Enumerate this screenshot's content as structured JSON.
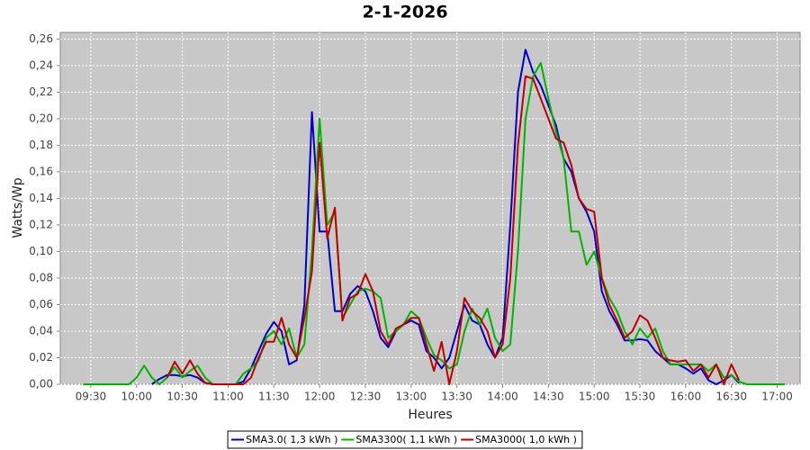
{
  "chart_data": {
    "type": "line",
    "title": "2-1-2026",
    "x_label": "Heures",
    "y_label": "Watts/Wp",
    "x": [
      "09:25",
      "09:30",
      "09:35",
      "09:40",
      "09:45",
      "09:50",
      "09:55",
      "10:00",
      "10:05",
      "10:10",
      "10:15",
      "10:20",
      "10:25",
      "10:30",
      "10:35",
      "10:40",
      "10:45",
      "10:50",
      "10:55",
      "11:00",
      "11:05",
      "11:10",
      "11:15",
      "11:20",
      "11:25",
      "11:30",
      "11:35",
      "11:40",
      "11:45",
      "11:50",
      "11:55",
      "12:00",
      "12:05",
      "12:10",
      "12:15",
      "12:20",
      "12:25",
      "12:30",
      "12:35",
      "12:40",
      "12:45",
      "12:50",
      "12:55",
      "13:00",
      "13:05",
      "13:10",
      "13:15",
      "13:20",
      "13:25",
      "13:30",
      "13:35",
      "13:40",
      "13:45",
      "13:50",
      "13:55",
      "14:00",
      "14:05",
      "14:10",
      "14:15",
      "14:20",
      "14:25",
      "14:30",
      "14:35",
      "14:40",
      "14:45",
      "14:50",
      "14:55",
      "15:00",
      "15:05",
      "15:10",
      "15:15",
      "15:20",
      "15:25",
      "15:30",
      "15:35",
      "15:40",
      "15:45",
      "15:50",
      "15:55",
      "16:00",
      "16:05",
      "16:10",
      "16:15",
      "16:20",
      "16:25",
      "16:30",
      "16:35",
      "16:40",
      "16:45",
      "16:50",
      "16:55",
      "17:00",
      "17:05"
    ],
    "series": [
      {
        "name": "SMA3.0( 1,3 kWh )",
        "color": "#0000c8",
        "values": [
          null,
          null,
          null,
          null,
          null,
          null,
          null,
          null,
          null,
          0,
          0.004,
          0.007,
          0.007,
          0.006,
          0.007,
          0.005,
          0.001,
          0,
          0,
          0,
          0,
          0.002,
          0.012,
          0.025,
          0.038,
          0.047,
          0.04,
          0.015,
          0.018,
          0.06,
          0.205,
          0.115,
          0.115,
          0.055,
          0.055,
          0.068,
          0.074,
          0.07,
          0.055,
          0.035,
          0.028,
          0.04,
          0.045,
          0.048,
          0.045,
          0.025,
          0.02,
          0.012,
          0.02,
          0.04,
          0.06,
          0.048,
          0.045,
          0.03,
          0.02,
          0.035,
          0.12,
          0.22,
          0.252,
          0.235,
          0.225,
          0.21,
          0.195,
          0.17,
          0.16,
          0.14,
          0.13,
          0.115,
          0.07,
          0.055,
          0.045,
          0.033,
          0.033,
          0.034,
          0.033,
          0.025,
          0.02,
          0.015,
          0.015,
          0.012,
          0.008,
          0.012,
          0.003,
          0,
          0.003,
          0.007,
          0.001,
          null,
          null,
          null,
          null,
          null,
          null
        ]
      },
      {
        "name": "SMA3300( 1,1 kWh )",
        "color": "#00b400",
        "values": [
          0,
          0,
          0,
          0,
          0,
          0,
          0,
          0.005,
          0.014,
          0.005,
          0,
          0.005,
          0.013,
          0.005,
          0.01,
          0.014,
          0.005,
          0,
          0,
          0,
          0,
          0.008,
          0.012,
          0.018,
          0.035,
          0.04,
          0.03,
          0.042,
          0.02,
          0.03,
          0.1,
          0.2,
          0.12,
          0.13,
          0.05,
          0.06,
          0.07,
          0.072,
          0.07,
          0.065,
          0.035,
          0.04,
          0.045,
          0.055,
          0.05,
          0.035,
          0.022,
          0.018,
          0.012,
          0.015,
          0.04,
          0.057,
          0.045,
          0.057,
          0.035,
          0.025,
          0.03,
          0.1,
          0.2,
          0.232,
          0.242,
          0.215,
          0.19,
          0.17,
          0.115,
          0.115,
          0.09,
          0.1,
          0.08,
          0.065,
          0.055,
          0.04,
          0.03,
          0.042,
          0.035,
          0.042,
          0.025,
          0.015,
          0.015,
          0.015,
          0.015,
          0.015,
          0.01,
          0.015,
          0.005,
          0.007,
          0.002,
          0,
          0,
          0,
          0,
          0,
          0
        ]
      },
      {
        "name": "SMA3000( 1,0 kWh )",
        "color": "#c00000",
        "values": [
          null,
          null,
          null,
          null,
          null,
          null,
          null,
          null,
          null,
          null,
          null,
          0.005,
          0.017,
          0.008,
          0.018,
          0.008,
          0.001,
          0,
          0,
          0,
          0,
          0,
          0.005,
          0.02,
          0.032,
          0.032,
          0.05,
          0.03,
          0.02,
          0.05,
          0.085,
          0.182,
          0.11,
          0.133,
          0.048,
          0.065,
          0.068,
          0.083,
          0.07,
          0.04,
          0.03,
          0.042,
          0.045,
          0.05,
          0.05,
          0.03,
          0.01,
          0.032,
          0,
          0.025,
          0.065,
          0.055,
          0.05,
          0.04,
          0.02,
          0.03,
          0.08,
          0.18,
          0.232,
          0.23,
          0.215,
          0.2,
          0.185,
          0.182,
          0.165,
          0.14,
          0.132,
          0.13,
          0.08,
          0.06,
          0.048,
          0.035,
          0.04,
          0.052,
          0.048,
          0.035,
          0.02,
          0.018,
          0.017,
          0.018,
          0.01,
          0.015,
          0.005,
          0.015,
          0,
          0.015,
          0.003,
          null,
          null,
          null,
          null,
          null,
          null
        ]
      }
    ],
    "xlim": [
      "09:10",
      "17:15"
    ],
    "xticks": [
      "09:30",
      "10:00",
      "10:30",
      "11:00",
      "11:30",
      "12:00",
      "12:30",
      "13:00",
      "13:30",
      "14:00",
      "14:30",
      "15:00",
      "15:30",
      "16:00",
      "16:30",
      "17:00"
    ],
    "ylim": [
      0,
      0.265
    ],
    "yticks": [
      {
        "value": 0,
        "label": "0,00"
      },
      {
        "value": 0.02,
        "label": "0,02"
      },
      {
        "value": 0.04,
        "label": "0,04"
      },
      {
        "value": 0.06,
        "label": "0,06"
      },
      {
        "value": 0.08,
        "label": "0,08"
      },
      {
        "value": 0.1,
        "label": "0,10"
      },
      {
        "value": 0.12,
        "label": "0,12"
      },
      {
        "value": 0.14,
        "label": "0,14"
      },
      {
        "value": 0.16,
        "label": "0,16"
      },
      {
        "value": 0.18,
        "label": "0,18"
      },
      {
        "value": 0.2,
        "label": "0,20"
      },
      {
        "value": 0.22,
        "label": "0,22"
      },
      {
        "value": 0.24,
        "label": "0,24"
      },
      {
        "value": 0.26,
        "label": "0,26"
      }
    ],
    "grid": true,
    "legend": "bottom"
  }
}
